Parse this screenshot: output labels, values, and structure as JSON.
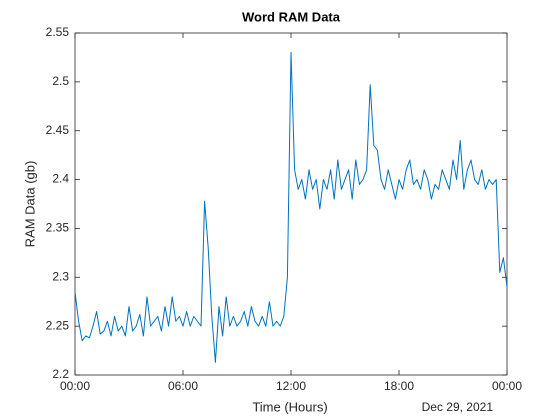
{
  "chart_data": {
    "type": "line",
    "title": "Word RAM Data",
    "xlabel": "Time (Hours)",
    "ylabel": "RAM Data (gb)",
    "annotation": "Dec 29, 2021",
    "xlim": [
      0,
      24
    ],
    "ylim": [
      2.2,
      2.55
    ],
    "xticks": [
      {
        "value": 0,
        "label": "00:00"
      },
      {
        "value": 6,
        "label": "06:00"
      },
      {
        "value": 12,
        "label": "12:00"
      },
      {
        "value": 18,
        "label": "18:00"
      },
      {
        "value": 24,
        "label": "00:00"
      }
    ],
    "yticks": [
      2.2,
      2.25,
      2.3,
      2.35,
      2.4,
      2.45,
      2.5,
      2.55
    ],
    "grid": false,
    "x": [
      0,
      0.2,
      0.4,
      0.6,
      0.8,
      1,
      1.2,
      1.4,
      1.6,
      1.8,
      2,
      2.2,
      2.4,
      2.6,
      2.8,
      3,
      3.2,
      3.4,
      3.6,
      3.8,
      4,
      4.2,
      4.4,
      4.6,
      4.8,
      5,
      5.2,
      5.4,
      5.6,
      5.8,
      6,
      6.2,
      6.4,
      6.6,
      6.8,
      7,
      7.2,
      7.4,
      7.6,
      7.8,
      8,
      8.2,
      8.4,
      8.6,
      8.8,
      9,
      9.2,
      9.4,
      9.6,
      9.8,
      10,
      10.2,
      10.4,
      10.6,
      10.8,
      11,
      11.2,
      11.4,
      11.6,
      11.8,
      12,
      12.2,
      12.4,
      12.6,
      12.8,
      13,
      13.2,
      13.4,
      13.6,
      13.8,
      14,
      14.2,
      14.4,
      14.6,
      14.8,
      15,
      15.2,
      15.4,
      15.6,
      15.8,
      16,
      16.2,
      16.4,
      16.6,
      16.8,
      17,
      17.2,
      17.4,
      17.6,
      17.8,
      18,
      18.2,
      18.4,
      18.6,
      18.8,
      19,
      19.2,
      19.4,
      19.6,
      19.8,
      20,
      20.2,
      20.4,
      20.6,
      20.8,
      21,
      21.2,
      21.4,
      21.6,
      21.8,
      22,
      22.2,
      22.4,
      22.6,
      22.8,
      23,
      23.2,
      23.4,
      23.6,
      23.8,
      24
    ],
    "series": [
      {
        "color": "#0072bd",
        "values": [
          2.285,
          2.255,
          2.235,
          2.24,
          2.238,
          2.25,
          2.265,
          2.242,
          2.245,
          2.255,
          2.24,
          2.26,
          2.245,
          2.25,
          2.24,
          2.27,
          2.245,
          2.25,
          2.262,
          2.24,
          2.28,
          2.25,
          2.255,
          2.26,
          2.245,
          2.27,
          2.25,
          2.28,
          2.255,
          2.26,
          2.25,
          2.265,
          2.25,
          2.26,
          2.255,
          2.25,
          2.378,
          2.33,
          2.26,
          2.213,
          2.27,
          2.24,
          2.28,
          2.25,
          2.26,
          2.25,
          2.255,
          2.265,
          2.25,
          2.27,
          2.255,
          2.25,
          2.26,
          2.25,
          2.275,
          2.25,
          2.255,
          2.25,
          2.26,
          2.3,
          2.53,
          2.41,
          2.39,
          2.4,
          2.38,
          2.41,
          2.39,
          2.4,
          2.37,
          2.4,
          2.39,
          2.41,
          2.38,
          2.42,
          2.39,
          2.4,
          2.41,
          2.38,
          2.42,
          2.395,
          2.4,
          2.41,
          2.497,
          2.435,
          2.43,
          2.4,
          2.39,
          2.41,
          2.395,
          2.38,
          2.4,
          2.39,
          2.41,
          2.42,
          2.395,
          2.4,
          2.39,
          2.41,
          2.4,
          2.38,
          2.395,
          2.39,
          2.41,
          2.4,
          2.39,
          2.42,
          2.4,
          2.44,
          2.39,
          2.41,
          2.42,
          2.4,
          2.395,
          2.41,
          2.39,
          2.4,
          2.395,
          2.4,
          2.305,
          2.32,
          2.29
        ]
      }
    ]
  }
}
